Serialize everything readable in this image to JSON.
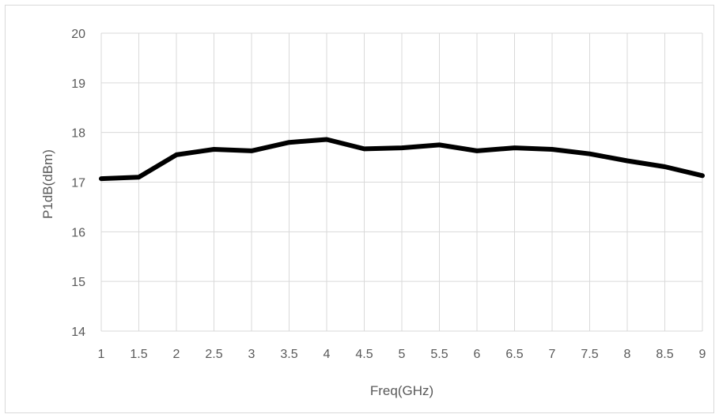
{
  "chart_data": {
    "type": "line",
    "title": "",
    "xlabel": "Freq(GHz)",
    "ylabel": "P1dB(dBm)",
    "x": [
      1,
      1.5,
      2,
      2.5,
      3,
      3.5,
      4,
      4.5,
      5,
      5.5,
      6,
      6.5,
      7,
      7.5,
      8,
      8.5,
      9
    ],
    "x_tick_labels": [
      "1",
      "1.5",
      "2",
      "2.5",
      "3",
      "3.5",
      "4",
      "4.5",
      "5",
      "5.5",
      "6",
      "6.5",
      "7",
      "7.5",
      "8",
      "8.5",
      "9"
    ],
    "y_tick_labels": [
      "14",
      "15",
      "16",
      "17",
      "18",
      "19",
      "20"
    ],
    "xlim": [
      1,
      9
    ],
    "ylim": [
      14,
      20
    ],
    "grid": true,
    "legend": "none",
    "series": [
      {
        "values": [
          17.07,
          17.1,
          17.55,
          17.66,
          17.63,
          17.8,
          17.86,
          17.67,
          17.69,
          17.75,
          17.63,
          17.69,
          17.66,
          17.57,
          17.43,
          17.31,
          17.13
        ],
        "color": "#000000"
      }
    ],
    "colors": {
      "grid": "#d9d9d9",
      "text": "#595959",
      "line": "#000000"
    }
  }
}
